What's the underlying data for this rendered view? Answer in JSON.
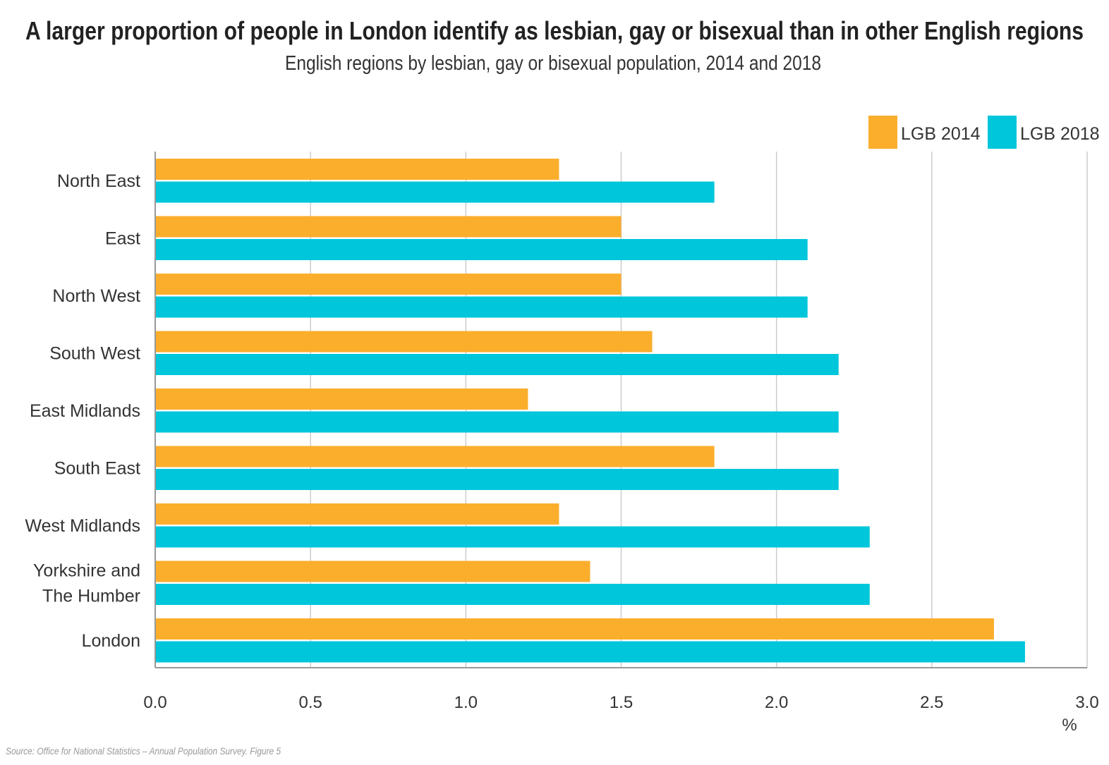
{
  "chart_data": {
    "type": "bar",
    "orientation": "horizontal",
    "title": "A larger proportion of people in London identify as lesbian, gay or bisexual than in other English regions",
    "subtitle": "English regions by lesbian, gay or bisexual population, 2014 and 2018",
    "xlabel": "%",
    "ylabel": "",
    "xlim": [
      0,
      3.0
    ],
    "xticks": [
      "0.0",
      "0.5",
      "1.0",
      "1.5",
      "2.0",
      "2.5",
      "3.0"
    ],
    "grid": true,
    "legend_position": "top-right",
    "categories": [
      "North East",
      "East",
      "North West",
      "South West",
      "East Midlands",
      "South East",
      "West Midlands",
      "Yorkshire and The Humber",
      "London"
    ],
    "category_lines": [
      [
        "North East"
      ],
      [
        "East"
      ],
      [
        "North West"
      ],
      [
        "South West"
      ],
      [
        "East Midlands"
      ],
      [
        "South East"
      ],
      [
        "West Midlands"
      ],
      [
        "Yorkshire and",
        "The Humber"
      ],
      [
        "London"
      ]
    ],
    "series": [
      {
        "name": "LGB 2014",
        "color": "#FBAE2C",
        "values": [
          1.3,
          1.5,
          1.5,
          1.6,
          1.2,
          1.8,
          1.3,
          1.4,
          2.7
        ]
      },
      {
        "name": "LGB 2018",
        "color": "#00C6DB",
        "values": [
          1.8,
          2.1,
          2.1,
          2.2,
          2.2,
          2.2,
          2.3,
          2.3,
          2.8
        ]
      }
    ],
    "source": "Source: Office for National Statistics – Annual Population Survey. Figure 5"
  }
}
